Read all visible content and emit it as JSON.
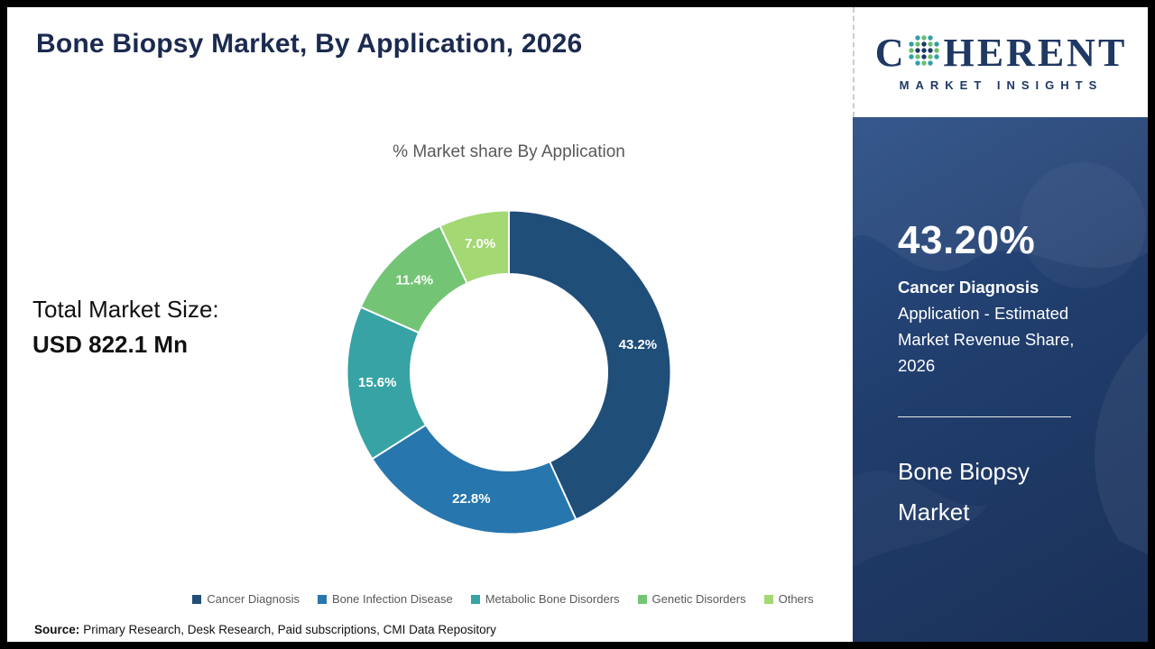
{
  "page": {
    "title": "Bone Biopsy Market, By Application, 2026"
  },
  "total_market": {
    "label": "Total Market Size:",
    "value": "USD 822.1 Mn"
  },
  "chart_data": {
    "type": "pie",
    "subtype": "donut",
    "title": "% Market share By Application",
    "categories": [
      "Cancer Diagnosis",
      "Bone Infection Disease",
      "Metabolic Bone Disorders",
      "Genetic Disorders",
      "Others"
    ],
    "values": [
      43.2,
      22.8,
      15.6,
      11.4,
      7.0
    ],
    "labels": [
      "43.2%",
      "22.8%",
      "15.6%",
      "11.4%",
      "7.0%"
    ],
    "colors": [
      "#1f4e79",
      "#2776ae",
      "#38a3a5",
      "#74c476",
      "#a3d873"
    ],
    "legend_position": "bottom",
    "start_angle_deg": 0,
    "direction": "clockwise"
  },
  "source": {
    "label": "Source:",
    "text": "Primary Research, Desk Research, Paid subscriptions, CMI Data Repository"
  },
  "side_panel": {
    "stat_value": "43.20%",
    "stat_title": "Cancer Diagnosis",
    "stat_desc": "Application - Estimated Market Revenue Share, 2026",
    "market_name": "Bone Biopsy Market",
    "logo": {
      "c": "C",
      "rest": "HERENT",
      "sub": "MARKET INSIGHTS"
    }
  }
}
